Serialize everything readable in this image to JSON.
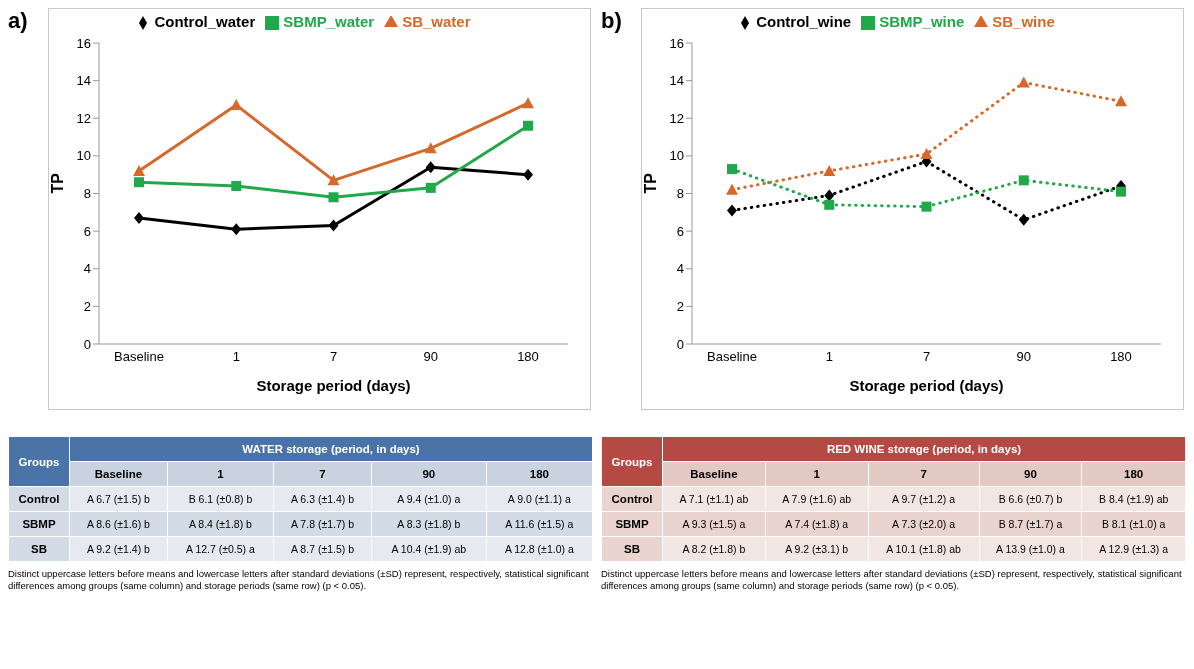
{
  "chart_data": [
    {
      "type": "line",
      "title": "a)",
      "xlabel": "Storage period (days)",
      "ylabel": "TP",
      "categories": [
        "Baseline",
        "1",
        "7",
        "90",
        "180"
      ],
      "ylim": [
        0,
        16
      ],
      "yticks": [
        0,
        2,
        4,
        6,
        8,
        10,
        12,
        14,
        16
      ],
      "legend": "top",
      "line_style": "solid",
      "series": [
        {
          "name": "Control_water",
          "color": "#000000",
          "marker": "diamond",
          "values": [
            6.7,
            6.1,
            6.3,
            9.4,
            9.0
          ],
          "value_labels": [
            "A 6.7 (±1.5) b",
            "B 6.1 (±0.8) b",
            "A 6.3 (±1.4) b",
            "A 9.4 (±1.0) a",
            "A 9.0 (±1.1) a"
          ]
        },
        {
          "name": "SBMP_water",
          "color": "#21a84a",
          "marker": "square",
          "values": [
            8.6,
            8.4,
            7.8,
            8.3,
            11.6
          ],
          "value_labels": [
            "A 8.6 (±1.6) b",
            "A 8.4 (±1.8) b",
            "A 7.8 (±1.7) b",
            "A 8.3 (±1.8) b",
            "A 11.6 (±1.5) a"
          ]
        },
        {
          "name": "SB_water",
          "color": "#d5692c",
          "marker": "triangle",
          "values": [
            9.2,
            12.7,
            8.7,
            10.4,
            12.8
          ],
          "value_labels": [
            "A 9.2 (±1.4) b",
            "A 12.7 (±0.5) a",
            "A 8.7 (±1.5) b",
            "A 10.4 (±1.9) ab",
            "A 12.8 (±1.0) a"
          ]
        }
      ],
      "annotations": [
        "Groups",
        "WATER storage (period, in days)",
        "Control",
        "SBMP",
        "SB",
        "Distinct uppercase letters before means and lowercase letters after standard deviations (±SD) represent, respectively, statistical significant differences among groups (same column) and storage periods (same row) (p < 0.05)."
      ]
    },
    {
      "type": "line",
      "title": "b)",
      "xlabel": "Storage period (days)",
      "ylabel": "TP",
      "categories": [
        "Baseline",
        "1",
        "7",
        "90",
        "180"
      ],
      "ylim": [
        0,
        16
      ],
      "yticks": [
        0,
        2,
        4,
        6,
        8,
        10,
        12,
        14,
        16
      ],
      "legend": "top",
      "line_style": "dotted",
      "series": [
        {
          "name": "Control_wine",
          "color": "#000000",
          "marker": "diamond",
          "values": [
            7.1,
            7.9,
            9.7,
            6.6,
            8.4
          ],
          "value_labels": [
            "A 7.1 (±1.1) ab",
            "A 7.9 (±1.6) ab",
            "A 9.7 (±1.2) a",
            "B 6.6 (±0.7) b",
            "B 8.4 (±1.9) ab"
          ]
        },
        {
          "name": "SBMP_wine",
          "color": "#21a84a",
          "marker": "square",
          "values": [
            9.3,
            7.4,
            7.3,
            8.7,
            8.1
          ],
          "value_labels": [
            "A 9.3 (±1.5) a",
            "A 7.4 (±1.8) a",
            "A 7.3 (±2.0) a",
            "B 8.7 (±1.7) a",
            "B 8.1 (±1.0) a"
          ]
        },
        {
          "name": "SB_wine",
          "color": "#d5692c",
          "marker": "triangle",
          "values": [
            8.2,
            9.2,
            10.1,
            13.9,
            12.9
          ],
          "value_labels": [
            "A 8.2 (±1.8) b",
            "A 9.2 (±3.1) b",
            "A 10.1 (±1.8) ab",
            "A 13.9 (±1.0) a",
            "A 12.9 (±1.3) a"
          ]
        }
      ],
      "annotations": [
        "Groups",
        "RED WINE storage (period, in days)",
        "Control",
        "SBMP",
        "SB",
        "Distinct uppercase letters before means and lowercase letters after standard deviations (±SD) represent, respectively, statistical significant differences among groups (same column) and storage periods (same row) (p < 0.05)."
      ]
    }
  ]
}
